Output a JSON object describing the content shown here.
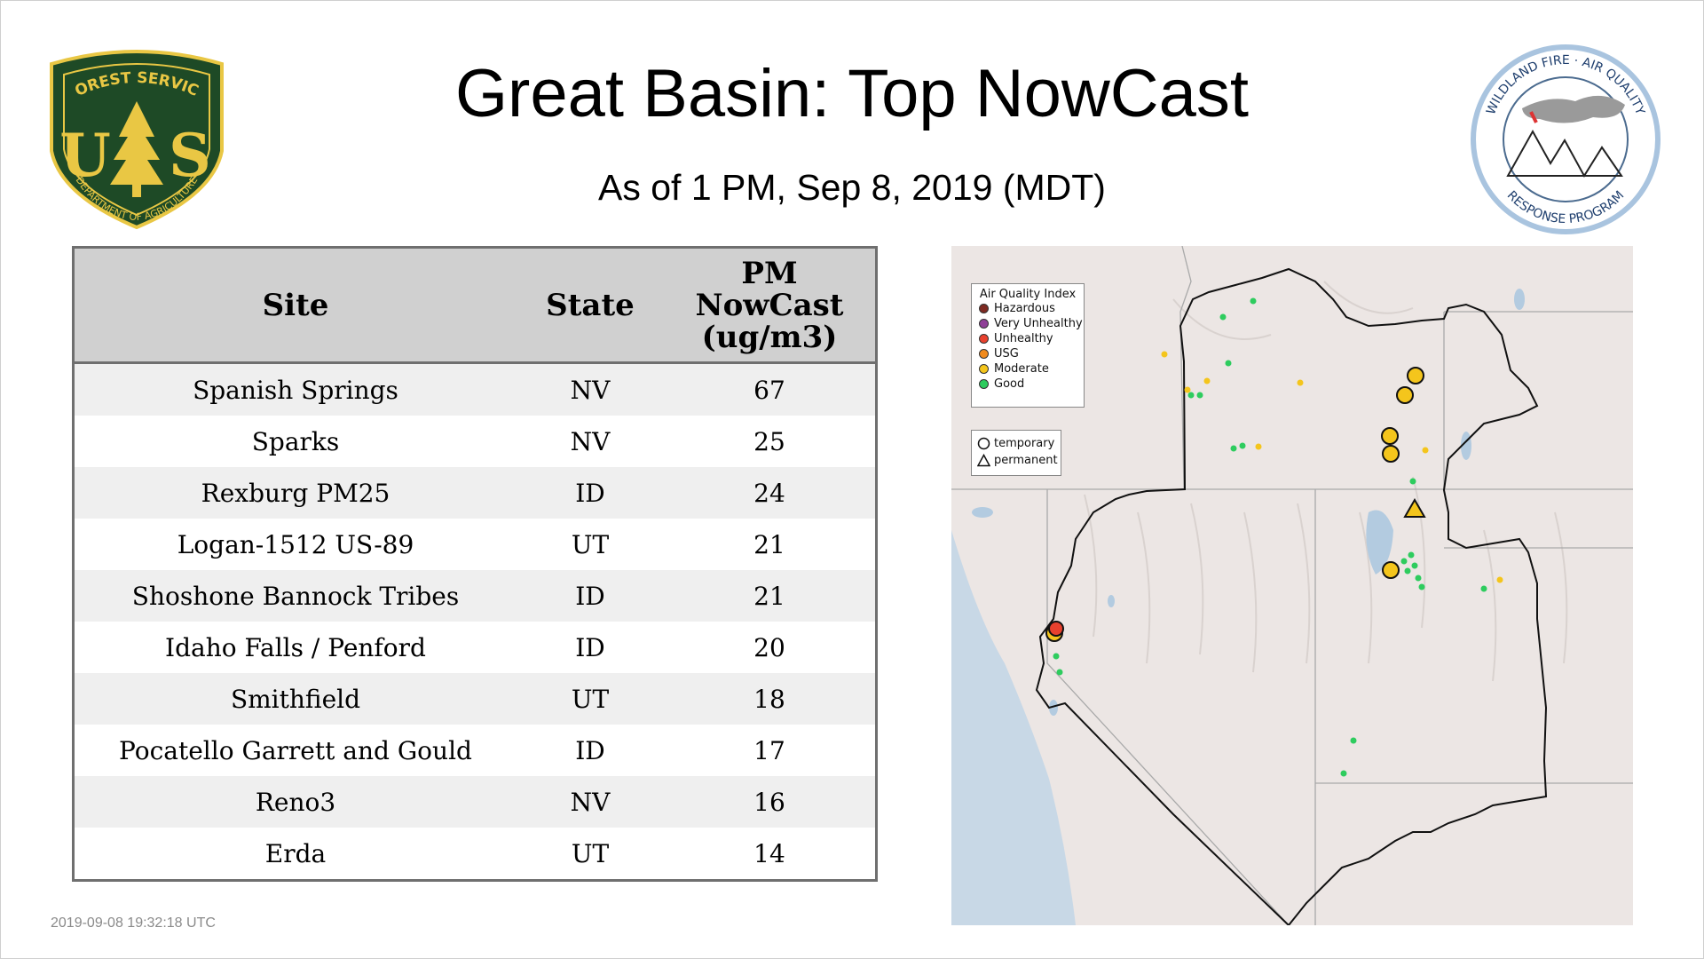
{
  "header": {
    "title": "Great Basin: Top NowCast",
    "subtitle": "As of  1 PM, Sep  8, 2019 (MDT)"
  },
  "logos": {
    "left": {
      "top_text": "FOREST SERVICE",
      "letters": "U S",
      "bottom_text": "DEPARTMENT OF AGRICULTURE",
      "colors": {
        "shield": "#1e4a26",
        "gold": "#e9c744"
      }
    },
    "right": {
      "top_text": "WILDLAND FIRE · AIR QUALITY",
      "bottom_text": "RESPONSE PROGRAM",
      "colors": {
        "ring": "#a9c4df",
        "text": "#1f3f6e"
      }
    }
  },
  "table": {
    "columns": [
      "Site",
      "State",
      "PM NowCast (ug/m3)"
    ],
    "pm_header_lines": [
      "PM",
      "NowCast",
      "(ug/m3)"
    ],
    "rows": [
      {
        "site": "Spanish Springs",
        "state": "NV",
        "pm": "67"
      },
      {
        "site": "Sparks",
        "state": "NV",
        "pm": "25"
      },
      {
        "site": "Rexburg PM25",
        "state": "ID",
        "pm": "24"
      },
      {
        "site": "Logan-1512 US-89",
        "state": "UT",
        "pm": "21"
      },
      {
        "site": "Shoshone Bannock Tribes",
        "state": "ID",
        "pm": "21"
      },
      {
        "site": "Idaho Falls / Penford",
        "state": "ID",
        "pm": "20"
      },
      {
        "site": "Smithfield",
        "state": "UT",
        "pm": "18"
      },
      {
        "site": "Pocatello Garrett and Gould",
        "state": "ID",
        "pm": "17"
      },
      {
        "site": "Reno3",
        "state": "NV",
        "pm": "16"
      },
      {
        "site": "Erda",
        "state": "UT",
        "pm": "14"
      }
    ]
  },
  "timestamp": "2019-09-08 19:32:18 UTC",
  "map": {
    "legend_title": "Air Quality Index",
    "aqi_categories": [
      {
        "label": "Hazardous",
        "color": "#7e2a22"
      },
      {
        "label": "Very Unhealthy",
        "color": "#8f3f97"
      },
      {
        "label": "Unhealthy",
        "color": "#e8412e"
      },
      {
        "label": "USG",
        "color": "#f08a1d"
      },
      {
        "label": "Moderate",
        "color": "#f4c51c"
      },
      {
        "label": "Good",
        "color": "#2ecc5e"
      }
    ],
    "monitor_types": [
      {
        "label": "temporary",
        "shape": "circle"
      },
      {
        "label": "permanent",
        "shape": "triangle"
      }
    ]
  }
}
